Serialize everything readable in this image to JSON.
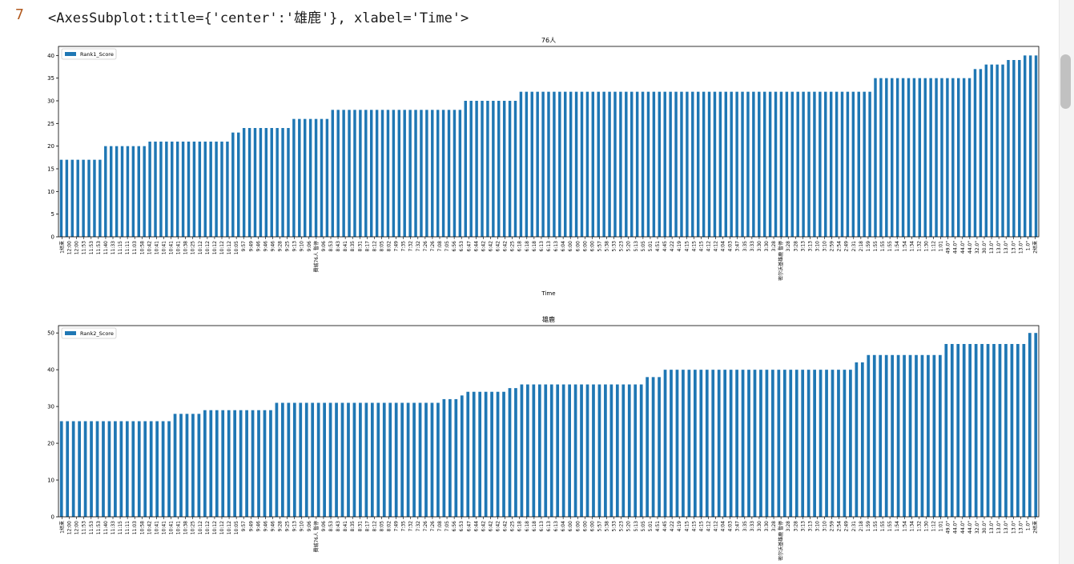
{
  "cell": {
    "execution_count": "7",
    "output_repr": "<AxesSubplot:title={'center':'雄鹿'}, xlabel='Time'>"
  },
  "chart_data": [
    {
      "type": "bar",
      "title": "76人",
      "xlabel": "Time",
      "ylabel": "",
      "ylim": [
        0,
        42
      ],
      "yticks": [
        0,
        5,
        10,
        15,
        20,
        25,
        30,
        35,
        40
      ],
      "legend": "top-left",
      "color": "#1f77b4",
      "series": [
        {
          "name": "Rank1_Score",
          "values": [
            17,
            17,
            17,
            17,
            17,
            17,
            17,
            17,
            20,
            20,
            20,
            20,
            20,
            20,
            20,
            20,
            21,
            21,
            21,
            21,
            21,
            21,
            21,
            21,
            21,
            21,
            21,
            21,
            21,
            21,
            21,
            23,
            23,
            24,
            24,
            24,
            24,
            24,
            24,
            24,
            24,
            24,
            26,
            26,
            26,
            26,
            26,
            26,
            26,
            28,
            28,
            28,
            28,
            28,
            28,
            28,
            28,
            28,
            28,
            28,
            28,
            28,
            28,
            28,
            28,
            28,
            28,
            28,
            28,
            28,
            28,
            28,
            28,
            30,
            30,
            30,
            30,
            30,
            30,
            30,
            30,
            30,
            30,
            32,
            32,
            32,
            32,
            32,
            32,
            32,
            32,
            32,
            32,
            32,
            32,
            32,
            32,
            32,
            32,
            32,
            32,
            32,
            32,
            32,
            32,
            32,
            32,
            32,
            32,
            32,
            32,
            32,
            32,
            32,
            32,
            32,
            32,
            32,
            32,
            32,
            32,
            32,
            32,
            32,
            32,
            32,
            32,
            32,
            32,
            32,
            32,
            32,
            32,
            32,
            32,
            32,
            32,
            32,
            32,
            32,
            32,
            32,
            32,
            32,
            32,
            32,
            32,
            35,
            35,
            35,
            35,
            35,
            35,
            35,
            35,
            35,
            35,
            35,
            35,
            35,
            35,
            35,
            35,
            35,
            35,
            37,
            37,
            38,
            38,
            38,
            38,
            39,
            39,
            39,
            40,
            40,
            40
          ]
        }
      ],
      "tick_labels_visible": [
        "1结束",
        "12:00",
        "12:00",
        "11:53",
        "11:53",
        "11:53",
        "11:40",
        "11:33",
        "11:15",
        "11:11",
        "11:03",
        "10:58",
        "10:42",
        "10:41",
        "10:41",
        "10:41",
        "10:41",
        "10:38",
        "10:25",
        "10:12",
        "10:12",
        "10:12",
        "10:12",
        "10:12",
        "10:05",
        "9:57",
        "9:49",
        "9:46",
        "9:46",
        "9:46",
        "9:28",
        "9:25",
        "9:13",
        "9:10",
        "9:06",
        "費城76人 暫停",
        "9:06",
        "8:53",
        "8:43",
        "8:41",
        "8:35",
        "8:31",
        "8:17",
        "8:12",
        "8:05",
        "8:02",
        "7:49",
        "7:35",
        "7:32",
        "7:32",
        "7:26",
        "7:26",
        "7:08",
        "7:05",
        "6:56",
        "6:53",
        "6:47",
        "6:44",
        "6:42",
        "6:42",
        "6:42",
        "6:42",
        "6:25",
        "6:18",
        "6:18",
        "6:18",
        "6:13",
        "6:13",
        "6:13",
        "6:04",
        "6:00",
        "6:00",
        "6:00",
        "6:00",
        "5:57",
        "5:38",
        "5:33",
        "5:23",
        "5:20",
        "5:13",
        "5:05",
        "5:01",
        "4:51",
        "4:45",
        "4:22",
        "4:19",
        "4:15",
        "4:15",
        "4:15",
        "4:12",
        "4:12",
        "4:04",
        "4:03",
        "3:47",
        "3:35",
        "3:33",
        "3:30",
        "3:30",
        "3:28",
        "密尔沃基雄鹿 暫停",
        "3:28",
        "3:28",
        "3:13",
        "3:13",
        "3:10",
        "3:10",
        "2:59",
        "2:54",
        "2:49",
        "2:31",
        "2:18",
        "1:59",
        "1:55",
        "1:55",
        "1:55",
        "1:54",
        "1:54",
        "1:34",
        "1:32",
        "1:30",
        "1:12",
        "1:01",
        "49.0\"",
        "44.0\"",
        "44.0\"",
        "44.0\"",
        "32.0\"",
        "30.0\"",
        "13.0\"",
        "13.0\"",
        "13.0\"",
        "13.0\"",
        "13.0\"",
        "1.0\"",
        "2结束"
      ]
    },
    {
      "type": "bar",
      "title": "雄鹿",
      "xlabel": "",
      "ylabel": "",
      "ylim": [
        0,
        52
      ],
      "yticks": [
        0,
        10,
        20,
        30,
        40,
        50
      ],
      "legend": "top-left",
      "color": "#1f77b4",
      "series": [
        {
          "name": "Rank2_Score",
          "values": [
            26,
            26,
            26,
            26,
            26,
            26,
            26,
            26,
            26,
            26,
            26,
            26,
            26,
            26,
            26,
            26,
            26,
            26,
            26,
            28,
            28,
            28,
            28,
            28,
            29,
            29,
            29,
            29,
            29,
            29,
            29,
            29,
            29,
            29,
            29,
            29,
            31,
            31,
            31,
            31,
            31,
            31,
            31,
            31,
            31,
            31,
            31,
            31,
            31,
            31,
            31,
            31,
            31,
            31,
            31,
            31,
            31,
            31,
            31,
            31,
            31,
            31,
            31,
            31,
            32,
            32,
            32,
            33,
            34,
            34,
            34,
            34,
            34,
            34,
            34,
            35,
            35,
            36,
            36,
            36,
            36,
            36,
            36,
            36,
            36,
            36,
            36,
            36,
            36,
            36,
            36,
            36,
            36,
            36,
            36,
            36,
            36,
            36,
            38,
            38,
            38,
            40,
            40,
            40,
            40,
            40,
            40,
            40,
            40,
            40,
            40,
            40,
            40,
            40,
            40,
            40,
            40,
            40,
            40,
            40,
            40,
            40,
            40,
            40,
            40,
            40,
            40,
            40,
            40,
            40,
            40,
            40,
            40,
            42,
            42,
            44,
            44,
            44,
            44,
            44,
            44,
            44,
            44,
            44,
            44,
            44,
            44,
            44,
            47,
            47,
            47,
            47,
            47,
            47,
            47,
            47,
            47,
            47,
            47,
            47,
            47,
            47,
            50,
            50
          ]
        }
      ],
      "tick_labels_visible": [
        "1结束",
        "12:00",
        "12:00",
        "11:53",
        "11:53",
        "11:53",
        "11:40",
        "11:33",
        "11:15",
        "11:11",
        "11:03",
        "10:58",
        "10:42",
        "10:41",
        "10:41",
        "10:41",
        "10:41",
        "10:38",
        "10:25",
        "10:12",
        "10:12",
        "10:12",
        "10:12",
        "10:12",
        "10:05",
        "9:57",
        "9:49",
        "9:46",
        "9:46",
        "9:46",
        "9:28",
        "9:25",
        "9:13",
        "9:10",
        "9:06",
        "費城76人 暫停",
        "9:06",
        "8:53",
        "8:43",
        "8:41",
        "8:35",
        "8:31",
        "8:17",
        "8:12",
        "8:05",
        "8:02",
        "7:49",
        "7:35",
        "7:32",
        "7:32",
        "7:26",
        "7:26",
        "7:08",
        "7:05",
        "6:56",
        "6:53",
        "6:47",
        "6:44",
        "6:42",
        "6:42",
        "6:42",
        "6:42",
        "6:25",
        "6:18",
        "6:18",
        "6:18",
        "6:13",
        "6:13",
        "6:13",
        "6:04",
        "6:00",
        "6:00",
        "6:00",
        "6:00",
        "5:57",
        "5:38",
        "5:33",
        "5:23",
        "5:20",
        "5:13",
        "5:05",
        "5:01",
        "4:51",
        "4:45",
        "4:22",
        "4:19",
        "4:15",
        "4:15",
        "4:15",
        "4:12",
        "4:12",
        "4:04",
        "4:03",
        "3:47",
        "3:35",
        "3:33",
        "3:30",
        "3:30",
        "3:28",
        "密尔沃基雄鹿 暫停",
        "3:28",
        "3:28",
        "3:13",
        "3:13",
        "3:10",
        "3:10",
        "2:59",
        "2:54",
        "2:49",
        "2:31",
        "2:18",
        "1:59",
        "1:55",
        "1:55",
        "1:55",
        "1:54",
        "1:54",
        "1:34",
        "1:32",
        "1:30",
        "1:12",
        "1:01",
        "49.0\"",
        "44.0\"",
        "44.0\"",
        "44.0\"",
        "32.0\"",
        "30.0\"",
        "13.0\"",
        "13.0\"",
        "13.0\"",
        "13.0\"",
        "13.0\"",
        "1.0\"",
        "2结束"
      ]
    }
  ]
}
